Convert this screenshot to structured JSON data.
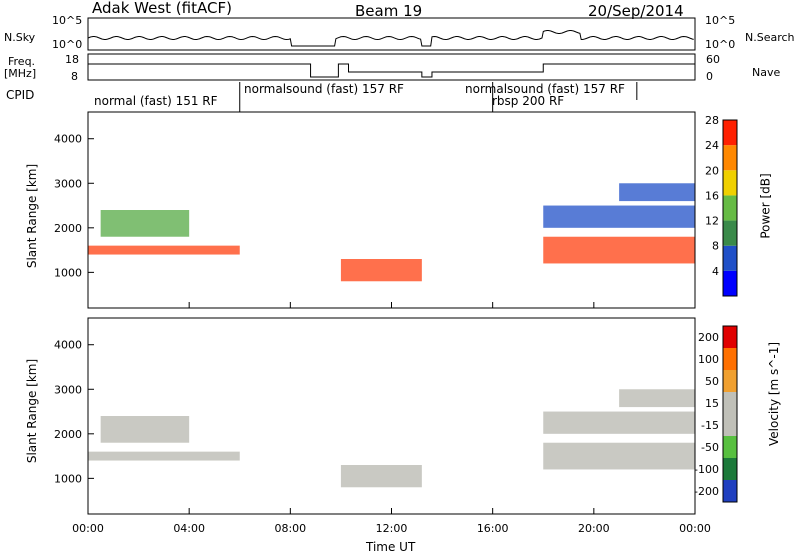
{
  "header": {
    "radar": "Adak West (fitACF)",
    "beam": "Beam 19",
    "date": "20/Sep/2014"
  },
  "left_labels": {
    "nsky": "N.Sky",
    "freq_line1": "Freq.",
    "freq_line2": "[MHz]",
    "cpid": "CPID"
  },
  "right_labels": {
    "nsearch": "N.Search",
    "nave": "Nave"
  },
  "noise_axis": {
    "left_ticks": [
      "10^5",
      "10^0"
    ],
    "right_ticks": [
      "10^5",
      "10^0"
    ]
  },
  "freq_axis": {
    "left_ticks": [
      "18",
      "8"
    ],
    "right_ticks": [
      "60",
      "0"
    ]
  },
  "cpid_segments": [
    {
      "label": "normal (fast) 151 RF",
      "start": 0,
      "end": 6
    },
    {
      "label": "normalsound (fast) 157 RF",
      "start": 6,
      "end": 21.7
    },
    {
      "label": "rbsp 200 RF",
      "start": 16,
      "end": 18
    }
  ],
  "chart_data": [
    {
      "type": "heatmap",
      "panel": "power",
      "ylabel": "Slant Range [km]",
      "yticks": [
        1000,
        2000,
        3000,
        4000
      ],
      "ylim": [
        200,
        4600
      ],
      "colorbar": {
        "label": "Power [dB]",
        "ticks": [
          4,
          8,
          12,
          16,
          20,
          24,
          28
        ],
        "colors": [
          "#0000ff",
          "#2050c8",
          "#3a8a4a",
          "#66bb44",
          "#f0d000",
          "#ff8800",
          "#ff2000"
        ]
      },
      "bands": [
        {
          "start": 0,
          "end": 6,
          "range": [
            1400,
            1600
          ],
          "level": "high"
        },
        {
          "start": 0.5,
          "end": 4,
          "range": [
            1800,
            2400
          ],
          "level": "mid"
        },
        {
          "start": 10,
          "end": 13.2,
          "range": [
            800,
            1300
          ],
          "level": "high"
        },
        {
          "start": 18,
          "end": 24,
          "range": [
            1200,
            1800
          ],
          "level": "high"
        },
        {
          "start": 18,
          "end": 24,
          "range": [
            2000,
            2500
          ],
          "level": "low"
        },
        {
          "start": 21,
          "end": 24,
          "range": [
            2600,
            3000
          ],
          "level": "low"
        }
      ]
    },
    {
      "type": "heatmap",
      "panel": "velocity",
      "ylabel": "Slant Range [km]",
      "yticks": [
        1000,
        2000,
        3000,
        4000
      ],
      "ylim": [
        200,
        4600
      ],
      "colorbar": {
        "label": "Velocity [m s^-1]",
        "ticks": [
          200,
          100,
          50,
          15,
          -15,
          -50,
          -100,
          -200
        ],
        "colors": [
          "#2040c0",
          "#1c7a3a",
          "#58c040",
          "#c0c0b8",
          "#c0c0b8",
          "#f0a030",
          "#ff7000",
          "#e00000"
        ]
      }
    }
  ],
  "time_axis": {
    "label": "Time UT",
    "ticks": [
      "00:00",
      "04:00",
      "08:00",
      "12:00",
      "16:00",
      "20:00",
      "00:00"
    ]
  }
}
